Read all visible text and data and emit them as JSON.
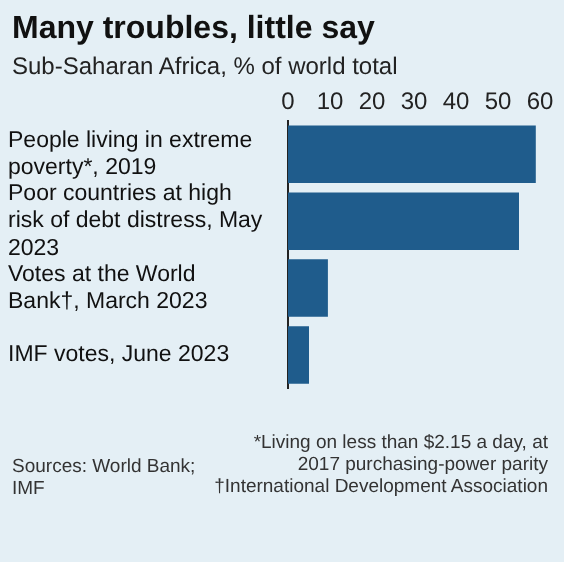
{
  "chart_data": {
    "type": "bar",
    "orientation": "horizontal",
    "title": "Many troubles, little say",
    "subtitle": "Sub-Saharan Africa, % of world total",
    "categories": [
      "People living in extreme poverty*, 2019",
      "Poor countries at high risk of debt distress, May 2023",
      "Votes at the World Bank†, March 2023",
      "IMF votes, June 2023"
    ],
    "values": [
      59,
      55,
      9.5,
      5
    ],
    "color": "#1f5c8c",
    "xlim": [
      0,
      60
    ],
    "xticks": [
      0,
      10,
      20,
      30,
      40,
      50,
      60
    ],
    "grid": false,
    "annotations": [
      "*Living on less than $2.15 a day, at 2017 purchasing-power parity",
      "†International Development Association",
      "Sources: World Bank; IMF"
    ]
  }
}
